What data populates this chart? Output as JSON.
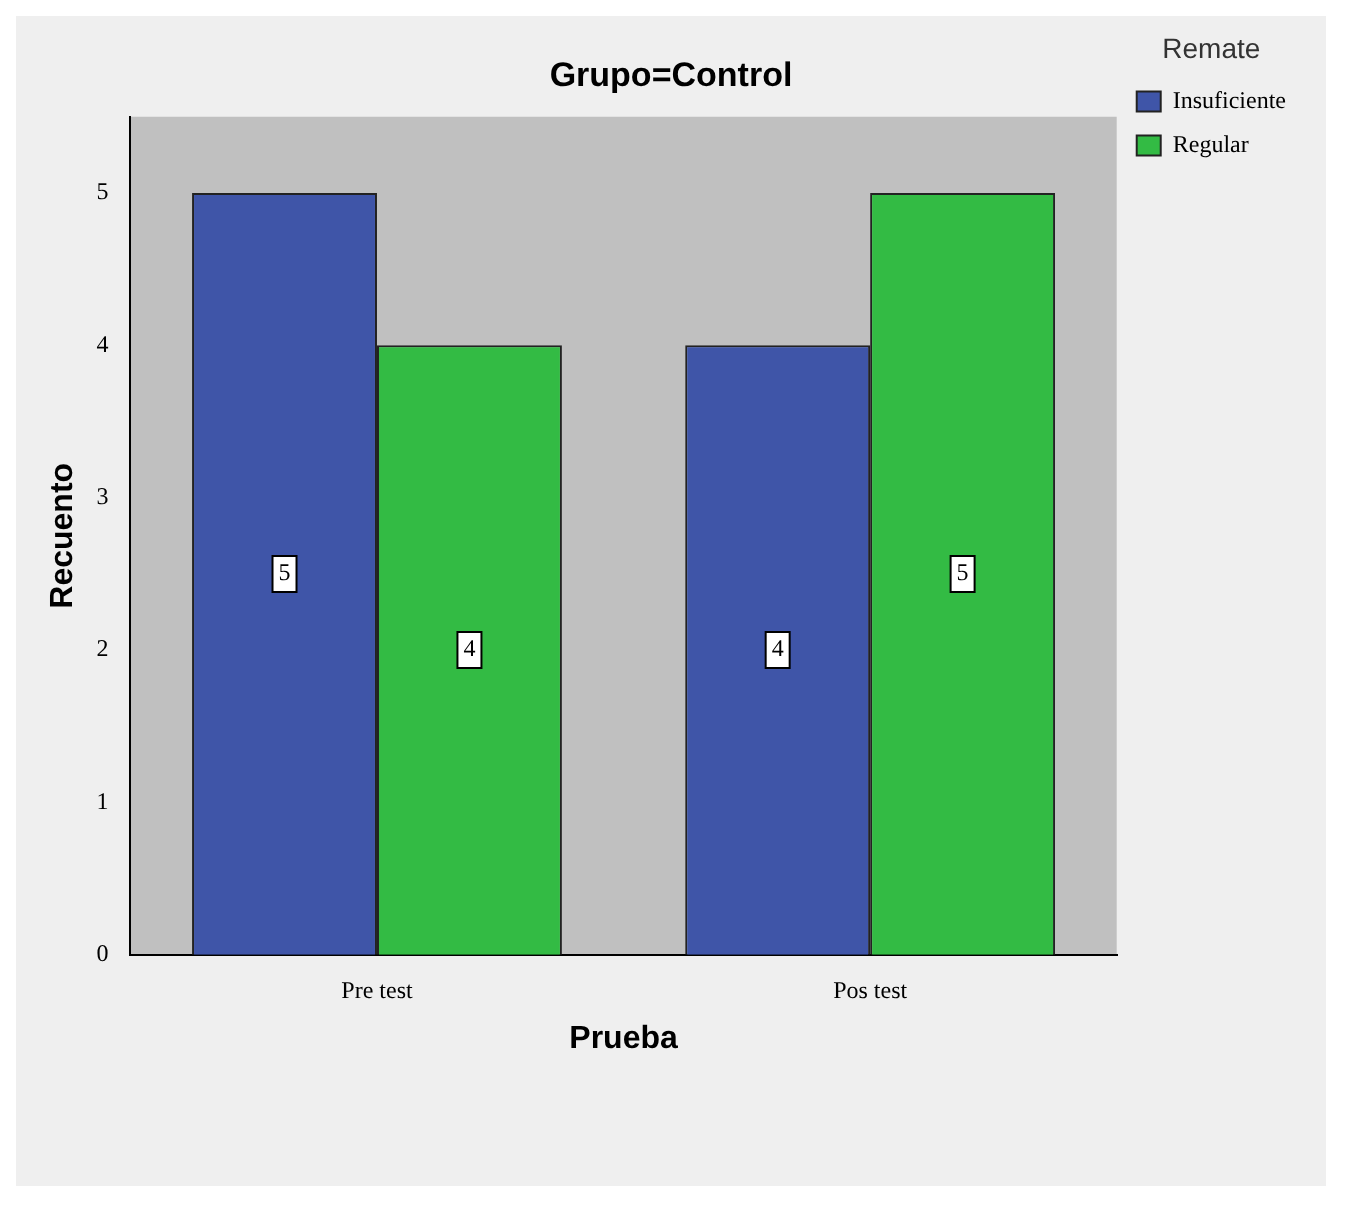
{
  "chart_data": {
    "type": "bar",
    "title": "Grupo=Control",
    "xlabel": "Prueba",
    "ylabel": "Recuento",
    "legend_title": "Remate",
    "categories": [
      "Pre test",
      "Pos test"
    ],
    "series": [
      {
        "name": "Insuficiente",
        "color": "#3f55a8",
        "values": [
          5,
          4
        ]
      },
      {
        "name": "Regular",
        "color": "#33bb44",
        "values": [
          4,
          5
        ]
      }
    ],
    "ylim": [
      0,
      5.5
    ],
    "yticks": [
      0,
      1,
      2,
      3,
      4,
      5
    ],
    "grid": false,
    "legend": "top right",
    "data_labels": true
  }
}
